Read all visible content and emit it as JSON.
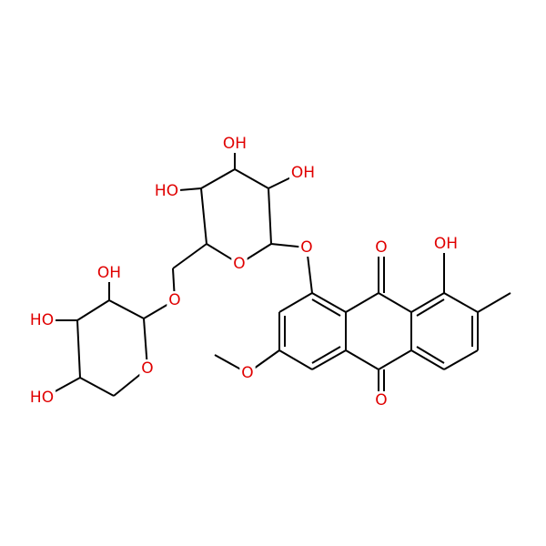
{
  "atoms": [
    {
      "label": "OH"
    },
    {
      "label": "HO"
    },
    {
      "label": "OH"
    },
    {
      "label": "O"
    },
    {
      "label": "O"
    },
    {
      "label": "O"
    },
    {
      "label": "OH"
    },
    {
      "label": "HO"
    },
    {
      "label": "O"
    },
    {
      "label": "HO"
    },
    {
      "label": "O"
    },
    {
      "label": "OH"
    },
    {
      "label": "O"
    },
    {
      "label": "O"
    }
  ]
}
